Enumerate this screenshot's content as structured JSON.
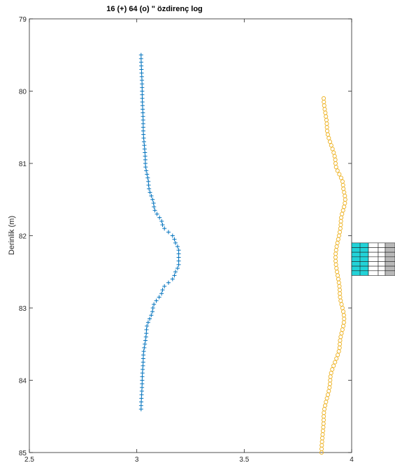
{
  "chart_data": {
    "type": "scatter",
    "title": "16 (+)  64 (o) \" özdirenç log",
    "ylabel": "Derinlik (m)",
    "xlabel": "",
    "xlim": [
      2.5,
      4
    ],
    "ylim": [
      79,
      85
    ],
    "y_reversed": true,
    "grid": false,
    "xticks": [
      2.5,
      3,
      3.5,
      4
    ],
    "xtick_labels": [
      "2.5",
      "3",
      "3.5",
      "4"
    ],
    "yticks": [
      79,
      80,
      81,
      82,
      83,
      84,
      85
    ],
    "ytick_labels": [
      "79",
      "80",
      "81",
      "82",
      "83",
      "84",
      "85"
    ],
    "series": [
      {
        "marker": "+",
        "color": "#0072BD",
        "points": [
          {
            "depth": 79.5,
            "value": 3.02
          },
          {
            "depth": 80.0,
            "value": 3.025
          },
          {
            "depth": 80.5,
            "value": 3.03
          },
          {
            "depth": 81.0,
            "value": 3.04
          },
          {
            "depth": 81.3,
            "value": 3.055
          },
          {
            "depth": 81.6,
            "value": 3.08
          },
          {
            "depth": 81.85,
            "value": 3.12
          },
          {
            "depth": 82.05,
            "value": 3.175
          },
          {
            "depth": 82.2,
            "value": 3.195
          },
          {
            "depth": 82.4,
            "value": 3.195
          },
          {
            "depth": 82.55,
            "value": 3.175
          },
          {
            "depth": 82.75,
            "value": 3.12
          },
          {
            "depth": 83.0,
            "value": 3.075
          },
          {
            "depth": 83.3,
            "value": 3.045
          },
          {
            "depth": 83.7,
            "value": 3.03
          },
          {
            "depth": 84.0,
            "value": 3.025
          },
          {
            "depth": 84.4,
            "value": 3.02
          }
        ]
      },
      {
        "marker": "o",
        "color": "#EDB120",
        "points": [
          {
            "depth": 80.1,
            "value": 3.87
          },
          {
            "depth": 80.5,
            "value": 3.885
          },
          {
            "depth": 81.0,
            "value": 3.925
          },
          {
            "depth": 81.3,
            "value": 3.96
          },
          {
            "depth": 81.5,
            "value": 3.97
          },
          {
            "depth": 81.8,
            "value": 3.95
          },
          {
            "depth": 82.3,
            "value": 3.925
          },
          {
            "depth": 82.8,
            "value": 3.945
          },
          {
            "depth": 83.15,
            "value": 3.965
          },
          {
            "depth": 83.5,
            "value": 3.945
          },
          {
            "depth": 84.0,
            "value": 3.9
          },
          {
            "depth": 84.5,
            "value": 3.87
          },
          {
            "depth": 85.0,
            "value": 3.86
          }
        ]
      }
    ]
  },
  "side_panel": {
    "row_count": 7,
    "cell_colors": [
      "#22d3d8",
      "#ffffff",
      "#b8b8b8"
    ]
  }
}
